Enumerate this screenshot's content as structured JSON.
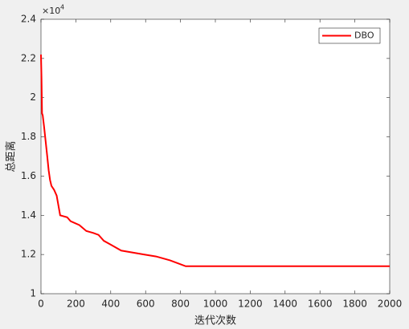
{
  "chart_data": {
    "type": "line",
    "x_label": "迭代次数",
    "y_label": "总距离",
    "y_multiplier": {
      "base": "×10",
      "exponent": "4"
    },
    "x": [
      0,
      3,
      6,
      10,
      18,
      24,
      30,
      36,
      44,
      52,
      60,
      75,
      90,
      100,
      110,
      150,
      170,
      220,
      260,
      300,
      330,
      360,
      400,
      460,
      590,
      660,
      740,
      800,
      830,
      900,
      2000
    ],
    "series": [
      {
        "name": "DBO",
        "color": "#ff0000",
        "values": [
          2.22,
          2.1,
          1.92,
          1.91,
          1.85,
          1.8,
          1.75,
          1.7,
          1.63,
          1.58,
          1.55,
          1.53,
          1.5,
          1.45,
          1.4,
          1.39,
          1.37,
          1.35,
          1.32,
          1.31,
          1.3,
          1.27,
          1.25,
          1.22,
          1.2,
          1.19,
          1.17,
          1.15,
          1.14,
          1.14,
          1.14
        ]
      }
    ],
    "xlim": [
      0,
      2000
    ],
    "ylim": [
      1,
      2.4
    ],
    "xticks": [
      0,
      200,
      400,
      600,
      800,
      1000,
      1200,
      1400,
      1600,
      1800,
      2000
    ],
    "yticks": [
      1,
      1.2,
      1.4,
      1.6,
      1.8,
      2,
      2.2,
      2.4
    ],
    "legend": "northeast",
    "grid": false
  }
}
